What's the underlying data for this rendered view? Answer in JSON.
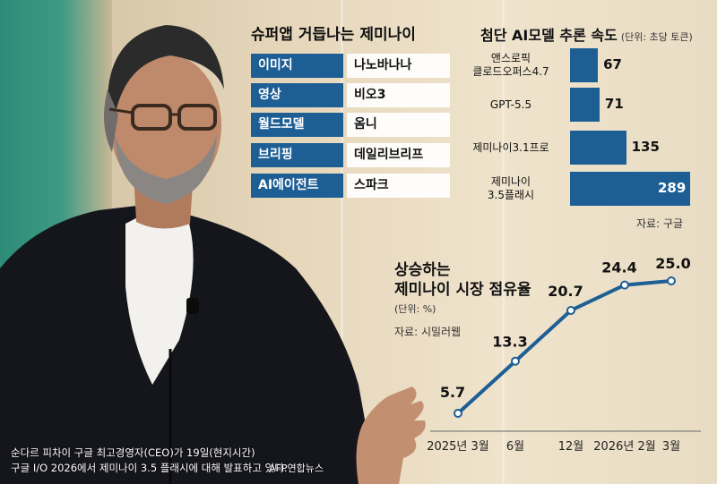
{
  "features": {
    "title": "슈퍼앱 거듭나는 제미나이",
    "rows": [
      {
        "label": "이미지",
        "value": "나노바나나"
      },
      {
        "label": "영상",
        "value": "비오3"
      },
      {
        "label": "월드모델",
        "value": "옴니"
      },
      {
        "label": "브리핑",
        "value": "데일리브리프"
      },
      {
        "label": "AI에이전트",
        "value": "스파크"
      }
    ]
  },
  "chart_data": [
    {
      "type": "bar",
      "orientation": "horizontal",
      "title": "첨단 AI모델 추론 속도",
      "unit": "(단위: 초당 토큰)",
      "categories": [
        "앤스로픽 클로드오퍼스4.7",
        "GPT-5.5",
        "제미나이3.1프로",
        "제미나이 3.5플래시"
      ],
      "category_lines": [
        [
          "앤스로픽",
          "클로드오퍼스4.7"
        ],
        [
          "GPT-5.5"
        ],
        [
          "제미나이3.1프로"
        ],
        [
          "제미나이",
          "3.5플래시"
        ]
      ],
      "values": [
        67,
        71,
        135,
        289
      ],
      "value_labels": [
        "67",
        "71",
        "135",
        "289"
      ],
      "source": "자료: 구글",
      "colors": {
        "bar": "#1d5f95"
      }
    },
    {
      "type": "line",
      "title_lines": [
        "상승하는",
        "제미나이 시장 점유율"
      ],
      "unit": "(단위: %)",
      "source": "자료: 시밀러웹",
      "x": [
        "2025년 3월",
        "6월",
        "12월",
        "2026년 2월",
        "3월"
      ],
      "x_dates": [
        "2025-03",
        "2025-06",
        "2025-12",
        "2026-02",
        "2026-03"
      ],
      "values": [
        5.7,
        13.3,
        20.7,
        24.4,
        25.0
      ],
      "value_labels": [
        "5.7",
        "13.3",
        "20.7",
        "24.4",
        "25.0"
      ],
      "ylim": [
        5,
        26
      ],
      "colors": {
        "line": "#1d5f95",
        "marker_fill": "#ffffff"
      }
    }
  ],
  "caption": {
    "line1": "순다르 피차이 구글 최고경영자(CEO)가 19일(현지시간)",
    "line2": "구글 I/O 2026에서 제미나이 3.5 플래시에 대해 발표하고 있다.",
    "credit": "AFP연합뉴스"
  }
}
